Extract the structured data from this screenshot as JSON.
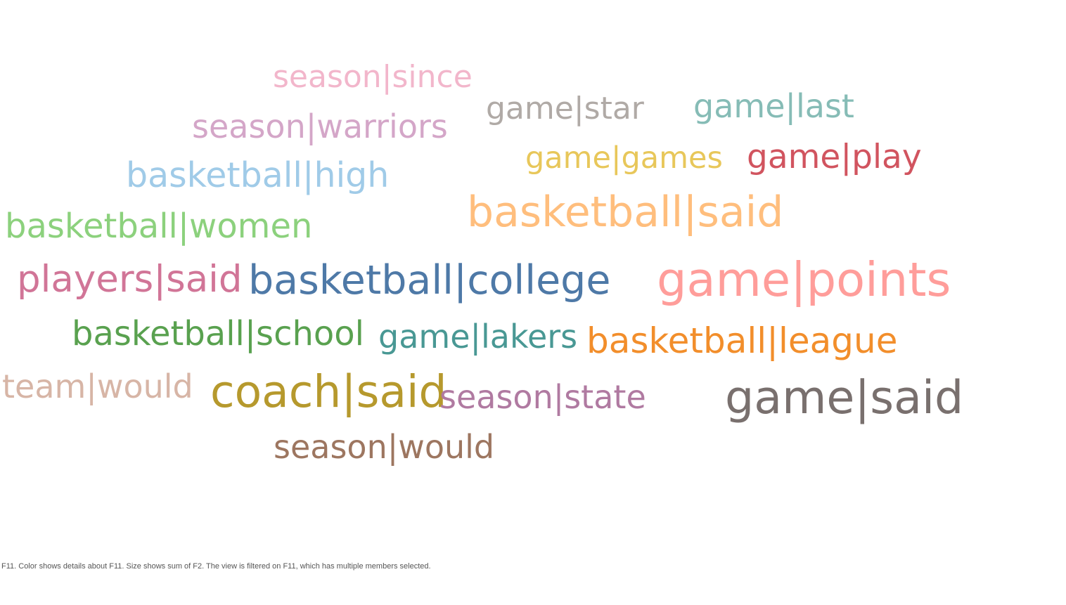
{
  "chart_data": {
    "type": "wordcloud",
    "words": [
      {
        "text": "season|since",
        "color": "#f2b6cb"
      },
      {
        "text": "game|star",
        "color": "#b0aaa6"
      },
      {
        "text": "game|last",
        "color": "#86bcb6"
      },
      {
        "text": "season|warriors",
        "color": "#d4a6c8"
      },
      {
        "text": "game|games",
        "color": "#e8c75a"
      },
      {
        "text": "game|play",
        "color": "#d1545f"
      },
      {
        "text": "basketball|high",
        "color": "#a0cbe8"
      },
      {
        "text": "basketball|said",
        "color": "#ffbe7d"
      },
      {
        "text": "basketball|women",
        "color": "#8cd17d"
      },
      {
        "text": "players|said",
        "color": "#d17597"
      },
      {
        "text": "basketball|college",
        "color": "#4e79a7"
      },
      {
        "text": "game|points",
        "color": "#ff9d9a"
      },
      {
        "text": "basketball|school",
        "color": "#59a14f"
      },
      {
        "text": "game|lakers",
        "color": "#499894"
      },
      {
        "text": "basketball|league",
        "color": "#f28e2b"
      },
      {
        "text": "team|would",
        "color": "#d7b5a6"
      },
      {
        "text": "coach|said",
        "color": "#b6992d"
      },
      {
        "text": "season|state",
        "color": "#b07aa1"
      },
      {
        "text": "game|said",
        "color": "#79706e"
      },
      {
        "text": "season|would",
        "color": "#9d7660"
      }
    ]
  },
  "caption": "F11.  Color shows details about F11.  Size shows sum of F2. The view is filtered on F11, which has multiple members selected."
}
